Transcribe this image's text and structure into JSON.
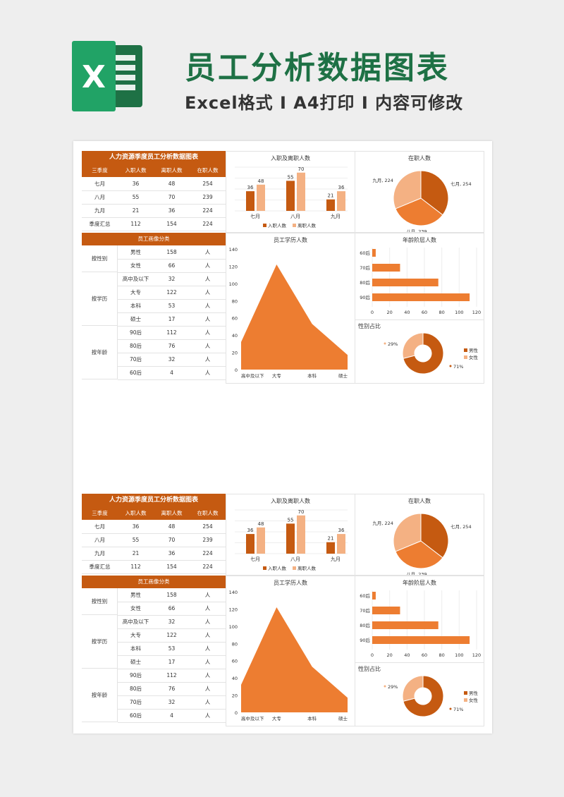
{
  "header": {
    "title": "员工分析数据图表",
    "subtitle": "Excel格式 I A4打印 I 内容可修改",
    "logo_letter": "X"
  },
  "colors": {
    "dark": "#c55a11",
    "mid": "#ed7d31",
    "light": "#f4b183",
    "green": "#1e7145"
  },
  "table": {
    "title": "人力资源季度员工分析数据图表",
    "headers": [
      "三季度",
      "入职人数",
      "离职人数",
      "在职人数"
    ],
    "rows": [
      [
        "七月",
        "36",
        "48",
        "254"
      ],
      [
        "八月",
        "55",
        "70",
        "239"
      ],
      [
        "九月",
        "21",
        "36",
        "224"
      ],
      [
        "季度汇总",
        "112",
        "154",
        "224"
      ]
    ]
  },
  "portrait": {
    "title": "员工画像分类",
    "unit": "人",
    "groups": [
      {
        "label": "按性别",
        "items": [
          [
            "男性",
            "158"
          ],
          [
            "女性",
            "66"
          ]
        ]
      },
      {
        "label": "按学历",
        "items": [
          [
            "高中及以下",
            "32"
          ],
          [
            "大专",
            "122"
          ],
          [
            "本科",
            "53"
          ],
          [
            "硕士",
            "17"
          ]
        ]
      },
      {
        "label": "按年龄",
        "items": [
          [
            "90后",
            "112"
          ],
          [
            "80后",
            "76"
          ],
          [
            "70后",
            "32"
          ],
          [
            "60后",
            "4"
          ]
        ]
      }
    ]
  },
  "chart_data": [
    {
      "type": "bar",
      "title": "入职及离职人数",
      "categories": [
        "七月",
        "八月",
        "九月"
      ],
      "series": [
        {
          "name": "入职人数",
          "values": [
            36,
            55,
            21
          ]
        },
        {
          "name": "离职人数",
          "values": [
            48,
            70,
            36
          ]
        }
      ],
      "legend": "bottom"
    },
    {
      "type": "pie",
      "title": "在职人数",
      "labels": [
        "七月",
        "八月",
        "九月"
      ],
      "values": [
        254,
        239,
        224
      ],
      "slice_labels": [
        "七月, 254",
        "八月, 239",
        "九月, 224"
      ]
    },
    {
      "type": "area",
      "title": "员工学历人数",
      "categories": [
        "高中及以下",
        "大专",
        "本科",
        "硕士"
      ],
      "values": [
        32,
        122,
        53,
        17
      ],
      "ylim": [
        0,
        140
      ],
      "yticks": [
        "0",
        "20",
        "40",
        "60",
        "80",
        "100",
        "120",
        "140"
      ]
    },
    {
      "type": "bar",
      "orientation": "horizontal",
      "title": "年龄阶层人数",
      "categories": [
        "60后",
        "70后",
        "80后",
        "90后"
      ],
      "values": [
        4,
        32,
        76,
        112
      ],
      "xlim": [
        0,
        120
      ],
      "xticks": [
        "0",
        "20",
        "40",
        "60",
        "80",
        "100",
        "120"
      ]
    },
    {
      "type": "pie",
      "donut": true,
      "title": "性别占比",
      "labels": [
        "男性",
        "女性"
      ],
      "values": [
        71,
        29
      ],
      "slice_labels": [
        "71%",
        "29%"
      ],
      "legend": "right"
    }
  ]
}
